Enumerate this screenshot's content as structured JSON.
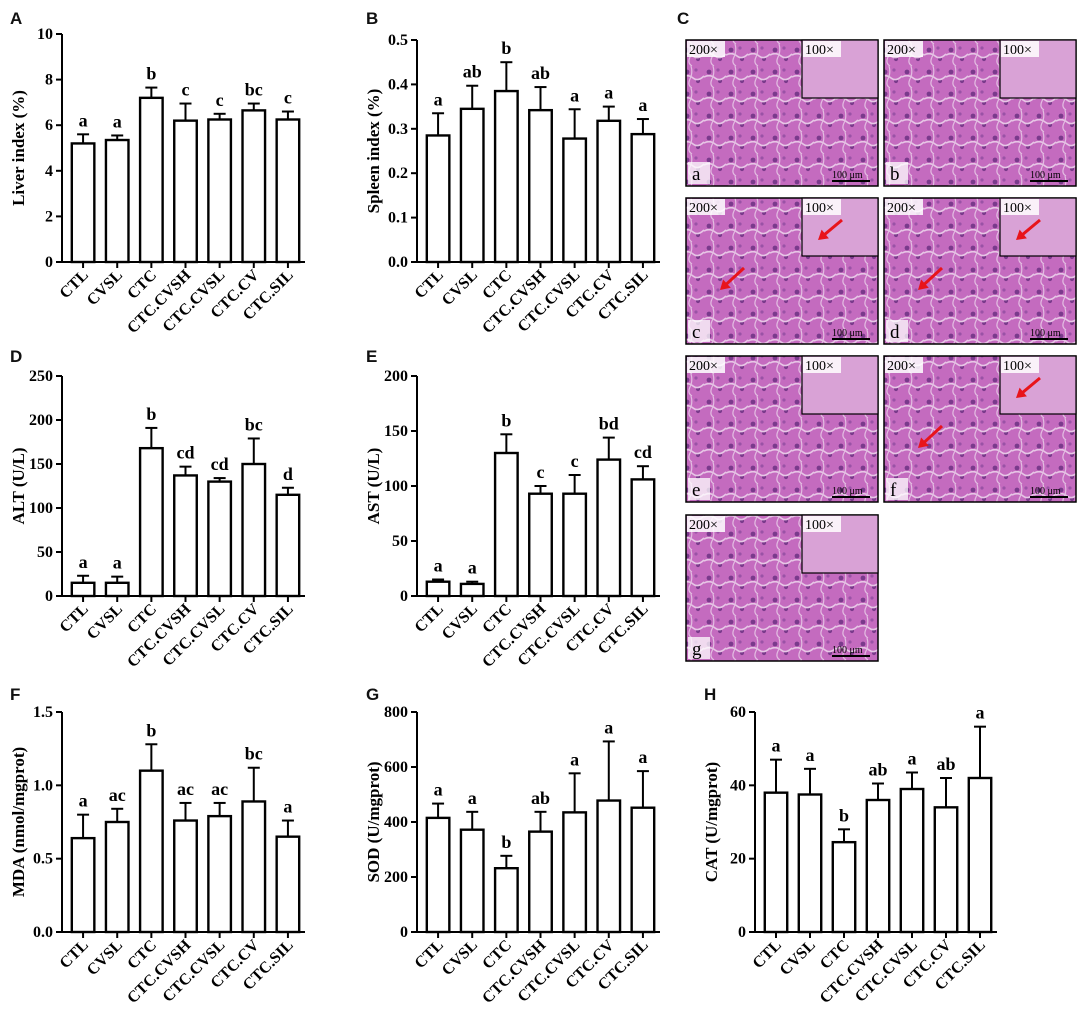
{
  "chart_data": [
    {
      "panel": "A",
      "type": "bar",
      "ylabel": "Liver index (%)",
      "ylim": [
        0,
        10
      ],
      "yticks": [
        "0",
        "2",
        "4",
        "6",
        "8",
        "10"
      ],
      "categories": [
        "CTL",
        "CVSL",
        "CTC",
        "CTC.CVSH",
        "CTC.CVSL",
        "CTC.CV",
        "CTC.SIL"
      ],
      "values": [
        5.2,
        5.35,
        7.2,
        6.2,
        6.25,
        6.65,
        6.25
      ],
      "errors": [
        0.4,
        0.2,
        0.45,
        0.75,
        0.25,
        0.3,
        0.35
      ],
      "labels": [
        "a",
        "a",
        "b",
        "c",
        "c",
        "bc",
        "c"
      ]
    },
    {
      "panel": "B",
      "type": "bar",
      "ylabel": "Spleen index (%)",
      "ylim": [
        0,
        0.5
      ],
      "yticks": [
        "0.0",
        "0.1",
        "0.2",
        "0.3",
        "0.4",
        "0.5"
      ],
      "categories": [
        "CTL",
        "CVSL",
        "CTC",
        "CTC.CVSH",
        "CTC.CVSL",
        "CTC.CV",
        "CTC.SIL"
      ],
      "values": [
        0.285,
        0.345,
        0.385,
        0.342,
        0.278,
        0.318,
        0.288
      ],
      "errors": [
        0.05,
        0.052,
        0.065,
        0.052,
        0.066,
        0.032,
        0.034
      ],
      "labels": [
        "a",
        "ab",
        "b",
        "ab",
        "a",
        "a",
        "a"
      ]
    },
    {
      "panel": "D",
      "type": "bar",
      "ylabel": "ALT (U/L)",
      "ylim": [
        0,
        250
      ],
      "yticks": [
        "0",
        "50",
        "100",
        "150",
        "200",
        "250"
      ],
      "categories": [
        "CTL",
        "CVSL",
        "CTC",
        "CTC.CVSH",
        "CTC.CVSL",
        "CTC.CV",
        "CTC.SIL"
      ],
      "values": [
        15,
        15,
        168,
        137,
        130,
        150,
        115
      ],
      "errors": [
        8,
        7,
        23,
        10,
        4,
        29,
        8
      ],
      "labels": [
        "a",
        "a",
        "b",
        "cd",
        "cd",
        "bc",
        "d"
      ]
    },
    {
      "panel": "E",
      "type": "bar",
      "ylabel": "AST (U/L)",
      "ylim": [
        0,
        200
      ],
      "yticks": [
        "0",
        "50",
        "100",
        "150",
        "200"
      ],
      "categories": [
        "CTL",
        "CVSL",
        "CTC",
        "CTC.CVSH",
        "CTC.CVSL",
        "CTC.CV",
        "CTC.SIL"
      ],
      "values": [
        13,
        11,
        130,
        93,
        93,
        124,
        106
      ],
      "errors": [
        2,
        2,
        17,
        7,
        17,
        20,
        12
      ],
      "labels": [
        "a",
        "a",
        "b",
        "c",
        "c",
        "bd",
        "cd"
      ]
    },
    {
      "panel": "F",
      "type": "bar",
      "ylabel": "MDA (nmol/mgprot)",
      "ylim": [
        0,
        1.5
      ],
      "yticks": [
        "0.0",
        "0.5",
        "1.0",
        "1.5"
      ],
      "categories": [
        "CTL",
        "CVSL",
        "CTC",
        "CTC.CVSH",
        "CTC.CVSL",
        "CTC.CV",
        "CTC.SIL"
      ],
      "values": [
        0.64,
        0.75,
        1.1,
        0.76,
        0.79,
        0.89,
        0.65
      ],
      "errors": [
        0.16,
        0.09,
        0.18,
        0.12,
        0.09,
        0.23,
        0.11
      ],
      "labels": [
        "a",
        "ac",
        "b",
        "ac",
        "ac",
        "bc",
        "a"
      ]
    },
    {
      "panel": "G",
      "type": "bar",
      "ylabel": "SOD  (U/mgprot)",
      "ylim": [
        0,
        800
      ],
      "yticks": [
        "0",
        "200",
        "400",
        "600",
        "800"
      ],
      "categories": [
        "CTL",
        "CVSL",
        "CTC",
        "CTC.CVSH",
        "CTC.CVSL",
        "CTC.CV",
        "CTC.SIL"
      ],
      "values": [
        415,
        372,
        232,
        365,
        435,
        478,
        452
      ],
      "errors": [
        52,
        65,
        45,
        72,
        142,
        215,
        133
      ],
      "labels": [
        "a",
        "a",
        "b",
        "ab",
        "a",
        "a",
        "a"
      ]
    },
    {
      "panel": "H",
      "type": "bar",
      "ylabel": "CAT (U/mgprot)",
      "ylim": [
        0,
        60
      ],
      "yticks": [
        "0",
        "20",
        "40",
        "60"
      ],
      "categories": [
        "CTL",
        "CVSL",
        "CTC",
        "CTC.CVSH",
        "CTC.CVSL",
        "CTC.CV",
        "CTC.SIL"
      ],
      "values": [
        38,
        37.5,
        24.5,
        36,
        39,
        34,
        42
      ],
      "errors": [
        9,
        7,
        3.5,
        4.5,
        4.5,
        8,
        14
      ],
      "labels": [
        "a",
        "a",
        "b",
        "ab",
        "a",
        "ab",
        "a"
      ]
    }
  ],
  "histology": {
    "panel": "C",
    "magnification_main": "200×",
    "magnification_inset": "100×",
    "scale_bar": "100 μm",
    "images": [
      {
        "letter": "a",
        "arrows": false
      },
      {
        "letter": "b",
        "arrows": false
      },
      {
        "letter": "c",
        "arrows": true
      },
      {
        "letter": "d",
        "arrows": true
      },
      {
        "letter": "e",
        "arrows": false
      },
      {
        "letter": "f",
        "arrows": true
      },
      {
        "letter": "g",
        "arrows": false
      }
    ]
  },
  "colors": {
    "bar_fill": "#ffffff",
    "stroke": "#000000",
    "tissue": "#c46bbf",
    "tissue_dark": "#8e3f99",
    "inset": "#d9a2d6",
    "arrow": "#e8141b"
  }
}
